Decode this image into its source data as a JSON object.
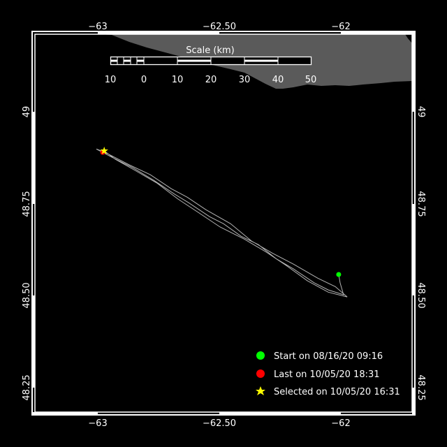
{
  "map": {
    "extent": {
      "lon": [
        -63.259,
        -61.707
      ],
      "lat": [
        48.184,
        49.211
      ]
    },
    "background_color": "#000000",
    "land_color": "#5a5a5a",
    "track_color": "#b4b4b4",
    "lon_ticks": [
      {
        "value": -63,
        "label": "−63"
      },
      {
        "value": -62.5,
        "label": "−62.50"
      },
      {
        "value": -62,
        "label": "−62"
      }
    ],
    "lat_ticks": [
      {
        "value": 49,
        "label": "49"
      },
      {
        "value": 48.75,
        "label": "48.75"
      },
      {
        "value": 48.5,
        "label": "48.50"
      },
      {
        "value": 48.25,
        "label": "48.25"
      }
    ]
  },
  "scale": {
    "title": "Scale (km)",
    "labels": [
      "10",
      "0",
      "10",
      "20",
      "30",
      "40",
      "50"
    ]
  },
  "track": [
    [
      -62.009,
      48.558
    ],
    [
      -62.003,
      48.535
    ],
    [
      -61.989,
      48.503
    ],
    [
      -62.052,
      48.516
    ],
    [
      -62.109,
      48.535
    ],
    [
      -62.195,
      48.573
    ],
    [
      -62.267,
      48.601
    ],
    [
      -62.339,
      48.639
    ],
    [
      -62.411,
      48.662
    ],
    [
      -62.483,
      48.696
    ],
    [
      -62.54,
      48.715
    ],
    [
      -62.626,
      48.753
    ],
    [
      -62.684,
      48.776
    ],
    [
      -62.77,
      48.814
    ],
    [
      -62.856,
      48.848
    ],
    [
      -62.943,
      48.877
    ],
    [
      -63.006,
      48.899
    ],
    [
      -62.971,
      48.89
    ],
    [
      -62.871,
      48.856
    ],
    [
      -62.784,
      48.829
    ],
    [
      -62.698,
      48.791
    ],
    [
      -62.632,
      48.768
    ],
    [
      -62.555,
      48.734
    ],
    [
      -62.454,
      48.696
    ],
    [
      -62.368,
      48.649
    ],
    [
      -62.282,
      48.616
    ],
    [
      -62.195,
      48.586
    ],
    [
      -62.095,
      48.548
    ],
    [
      -62.023,
      48.525
    ],
    [
      -61.974,
      48.497
    ],
    [
      -62.052,
      48.51
    ],
    [
      -62.138,
      48.541
    ],
    [
      -62.224,
      48.582
    ],
    [
      -62.31,
      48.62
    ],
    [
      -62.397,
      48.654
    ],
    [
      -62.497,
      48.687
    ],
    [
      -62.583,
      48.725
    ],
    [
      -62.67,
      48.763
    ],
    [
      -62.756,
      48.806
    ],
    [
      -62.842,
      48.839
    ],
    [
      -62.928,
      48.871
    ],
    [
      -62.974,
      48.894
    ]
  ],
  "markers": {
    "start": {
      "lon": -62.009,
      "lat": 48.558,
      "color": "#00ff00"
    },
    "last": {
      "lon": -62.98,
      "lat": 48.89,
      "color": "#ff0000"
    },
    "selected": {
      "lon": -62.974,
      "lat": 48.894,
      "color": "#ffff00"
    }
  },
  "legend": {
    "start": {
      "label": "Start on 08/16/20 09:16",
      "color": "#00ff00",
      "icon": "circle"
    },
    "last": {
      "label": "Last on 10/05/20 18:31",
      "color": "#ff0000",
      "icon": "circle"
    },
    "selected": {
      "label": "Selected on 10/05/20 16:31",
      "color": "#ffff00",
      "icon": "star"
    }
  }
}
